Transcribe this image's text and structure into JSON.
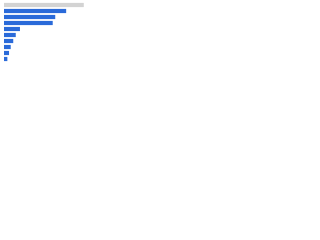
{
  "chart_data": {
    "type": "hbar",
    "categories": [
      null,
      null,
      null,
      null,
      null,
      null,
      null,
      null,
      null,
      null
    ],
    "values": [
      95,
      74,
      61,
      58,
      19,
      14,
      11,
      8,
      6,
      4
    ],
    "colors": [
      "#d3d3d3",
      "#2a6ad9",
      "#2a6ad9",
      "#2a6ad9",
      "#2a6ad9",
      "#2a6ad9",
      "#2a6ad9",
      "#2a6ad9",
      "#2a6ad9",
      "#2a6ad9"
    ],
    "xlim": [
      0,
      100
    ]
  }
}
